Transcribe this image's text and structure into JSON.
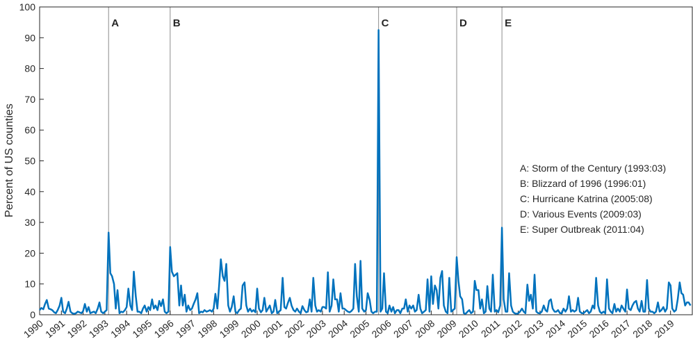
{
  "chart_data": {
    "type": "line",
    "ylabel": "Percent of US counties",
    "color": "#0072bd",
    "xlim": [
      1990,
      2020
    ],
    "ylim": [
      0,
      100
    ],
    "yticks": [
      0,
      10,
      20,
      30,
      40,
      50,
      60,
      70,
      80,
      90,
      100
    ],
    "xticks": [
      1990,
      1991,
      1992,
      1993,
      1994,
      1995,
      1996,
      1997,
      1998,
      1999,
      2000,
      2001,
      2002,
      2003,
      2004,
      2005,
      2006,
      2007,
      2008,
      2009,
      2010,
      2011,
      2012,
      2013,
      2014,
      2015,
      2016,
      2017,
      2018,
      2019
    ],
    "events": [
      {
        "label": "A",
        "x": 1993.17,
        "text": "A: Storm of the Century (1993:03)"
      },
      {
        "label": "B",
        "x": 1996.0,
        "text": "B: Blizzard of 1996 (1996:01)"
      },
      {
        "label": "C",
        "x": 2005.58,
        "text": "C: Hurricane Katrina (2005:08)"
      },
      {
        "label": "D",
        "x": 2009.17,
        "text": "D: Various Events (2009:03)"
      },
      {
        "label": "E",
        "x": 2011.25,
        "text": "E: Super Outbreak (2011:04)"
      }
    ],
    "x": [
      1990.0,
      1990.08,
      1990.17,
      1990.25,
      1990.33,
      1990.42,
      1990.5,
      1990.58,
      1990.67,
      1990.75,
      1990.83,
      1990.92,
      1991.0,
      1991.08,
      1991.17,
      1991.25,
      1991.33,
      1991.42,
      1991.5,
      1991.58,
      1991.67,
      1991.75,
      1991.83,
      1991.92,
      1992.0,
      1992.08,
      1992.17,
      1992.25,
      1992.33,
      1992.42,
      1992.5,
      1992.58,
      1992.67,
      1992.75,
      1992.83,
      1992.92,
      1993.0,
      1993.08,
      1993.17,
      1993.25,
      1993.33,
      1993.42,
      1993.5,
      1993.58,
      1993.67,
      1993.75,
      1993.83,
      1993.92,
      1994.0,
      1994.08,
      1994.17,
      1994.25,
      1994.33,
      1994.42,
      1994.5,
      1994.58,
      1994.67,
      1994.75,
      1994.83,
      1994.92,
      1995.0,
      1995.08,
      1995.17,
      1995.25,
      1995.33,
      1995.42,
      1995.5,
      1995.58,
      1995.67,
      1995.75,
      1995.83,
      1995.92,
      1996.0,
      1996.08,
      1996.17,
      1996.25,
      1996.33,
      1996.42,
      1996.5,
      1996.58,
      1996.67,
      1996.75,
      1996.83,
      1996.92,
      1997.0,
      1997.08,
      1997.17,
      1997.25,
      1997.33,
      1997.42,
      1997.5,
      1997.58,
      1997.67,
      1997.75,
      1997.83,
      1997.92,
      1998.0,
      1998.08,
      1998.17,
      1998.25,
      1998.33,
      1998.42,
      1998.5,
      1998.58,
      1998.67,
      1998.75,
      1998.83,
      1998.92,
      1999.0,
      1999.08,
      1999.17,
      1999.25,
      1999.33,
      1999.42,
      1999.5,
      1999.58,
      1999.67,
      1999.75,
      1999.83,
      1999.92,
      2000.0,
      2000.08,
      2000.17,
      2000.25,
      2000.33,
      2000.42,
      2000.5,
      2000.58,
      2000.67,
      2000.75,
      2000.83,
      2000.92,
      2001.0,
      2001.08,
      2001.17,
      2001.25,
      2001.33,
      2001.42,
      2001.5,
      2001.58,
      2001.67,
      2001.75,
      2001.83,
      2001.92,
      2002.0,
      2002.08,
      2002.17,
      2002.25,
      2002.33,
      2002.42,
      2002.5,
      2002.58,
      2002.67,
      2002.75,
      2002.83,
      2002.92,
      2003.0,
      2003.08,
      2003.17,
      2003.25,
      2003.33,
      2003.42,
      2003.5,
      2003.58,
      2003.67,
      2003.75,
      2003.83,
      2003.92,
      2004.0,
      2004.08,
      2004.17,
      2004.25,
      2004.33,
      2004.42,
      2004.5,
      2004.58,
      2004.67,
      2004.75,
      2004.83,
      2004.92,
      2005.0,
      2005.08,
      2005.17,
      2005.25,
      2005.33,
      2005.42,
      2005.5,
      2005.58,
      2005.67,
      2005.75,
      2005.83,
      2005.92,
      2006.0,
      2006.08,
      2006.17,
      2006.25,
      2006.33,
      2006.42,
      2006.5,
      2006.58,
      2006.67,
      2006.75,
      2006.83,
      2006.92,
      2007.0,
      2007.08,
      2007.17,
      2007.25,
      2007.33,
      2007.42,
      2007.5,
      2007.58,
      2007.67,
      2007.75,
      2007.83,
      2007.92,
      2008.0,
      2008.08,
      2008.17,
      2008.25,
      2008.33,
      2008.42,
      2008.5,
      2008.58,
      2008.67,
      2008.75,
      2008.83,
      2008.92,
      2009.0,
      2009.08,
      2009.17,
      2009.25,
      2009.33,
      2009.42,
      2009.5,
      2009.58,
      2009.67,
      2009.75,
      2009.83,
      2009.92,
      2010.0,
      2010.08,
      2010.17,
      2010.25,
      2010.33,
      2010.42,
      2010.5,
      2010.58,
      2010.67,
      2010.75,
      2010.83,
      2010.92,
      2011.0,
      2011.08,
      2011.17,
      2011.25,
      2011.33,
      2011.42,
      2011.5,
      2011.58,
      2011.67,
      2011.75,
      2011.83,
      2011.92,
      2012.0,
      2012.08,
      2012.17,
      2012.25,
      2012.33,
      2012.42,
      2012.5,
      2012.58,
      2012.67,
      2012.75,
      2012.83,
      2012.92,
      2013.0,
      2013.08,
      2013.17,
      2013.25,
      2013.33,
      2013.42,
      2013.5,
      2013.58,
      2013.67,
      2013.75,
      2013.83,
      2013.92,
      2014.0,
      2014.08,
      2014.17,
      2014.25,
      2014.33,
      2014.42,
      2014.5,
      2014.58,
      2014.67,
      2014.75,
      2014.83,
      2014.92,
      2015.0,
      2015.08,
      2015.17,
      2015.25,
      2015.33,
      2015.42,
      2015.5,
      2015.58,
      2015.67,
      2015.75,
      2015.83,
      2015.92,
      2016.0,
      2016.08,
      2016.17,
      2016.25,
      2016.33,
      2016.42,
      2016.5,
      2016.58,
      2016.67,
      2016.75,
      2016.83,
      2016.92,
      2017.0,
      2017.08,
      2017.17,
      2017.25,
      2017.33,
      2017.42,
      2017.5,
      2017.58,
      2017.67,
      2017.75,
      2017.83,
      2017.92,
      2018.0,
      2018.08,
      2018.17,
      2018.25,
      2018.33,
      2018.42,
      2018.5,
      2018.58,
      2018.67,
      2018.75,
      2018.83,
      2018.92,
      2019.0,
      2019.08,
      2019.17,
      2019.25,
      2019.33,
      2019.42,
      2019.5,
      2019.58,
      2019.67,
      2019.75,
      2019.83,
      2019.92
    ],
    "values": [
      1.5,
      2.2,
      1.8,
      3.5,
      4.8,
      2,
      1.8,
      1.5,
      0.8,
      0.5,
      1.5,
      3,
      5.5,
      1,
      0.5,
      2,
      4.2,
      1,
      0.5,
      0.3,
      0.5,
      1,
      0.8,
      0.5,
      1.2,
      3.5,
      1,
      2.5,
      0.5,
      0.8,
      1,
      0.5,
      2,
      4,
      1,
      0.5,
      1,
      1.5,
      26.7,
      13.5,
      12.5,
      10,
      2,
      8,
      0.5,
      1,
      0.8,
      1.5,
      2.5,
      8.5,
      3,
      1.5,
      14,
      6,
      1,
      1,
      0.5,
      2,
      3,
      1,
      2.5,
      1.5,
      5,
      2,
      3,
      1.5,
      4.5,
      2.8,
      5,
      1,
      0.5,
      1,
      22,
      14,
      12.5,
      13,
      13.5,
      3,
      9.5,
      3,
      6.5,
      1,
      3,
      1.5,
      2,
      3.5,
      5,
      7,
      0.5,
      1,
      0.8,
      1.5,
      1,
      1.2,
      1.5,
      1,
      2,
      6.8,
      2,
      9.5,
      18,
      12.5,
      11,
      16.5,
      3,
      1,
      2.5,
      6,
      1,
      0.5,
      1.5,
      2,
      9.5,
      10.5,
      3,
      1,
      2,
      1,
      1.5,
      0.8,
      8.5,
      2,
      0.8,
      1.5,
      5.5,
      1,
      2,
      3,
      0.5,
      1,
      4.8,
      0.5,
      1,
      1.5,
      12,
      2.5,
      2,
      4,
      5.5,
      3,
      1.5,
      1,
      2,
      1,
      0.5,
      2.8,
      1.5,
      0.8,
      1,
      5,
      1,
      12,
      3,
      1,
      1.5,
      1,
      2.5,
      2.5,
      2,
      13.8,
      1,
      3,
      11.5,
      5,
      5,
      1,
      7,
      2,
      2,
      1.5,
      1,
      0.8,
      1.2,
      2,
      16.5,
      6,
      1,
      17.5,
      2,
      1,
      1.5,
      7,
      4.8,
      1,
      0.5,
      1,
      1,
      92.5,
      1,
      2,
      13.5,
      1,
      0.5,
      3,
      1,
      2.5,
      0.5,
      1.5,
      1.5,
      0.5,
      2,
      2,
      5,
      1,
      3,
      2,
      3,
      1,
      1.5,
      6.5,
      2,
      0.5,
      1,
      1.5,
      11.5,
      1,
      12.5,
      3.5,
      9.5,
      8,
      2,
      12,
      14.2,
      3,
      1,
      0.5,
      12,
      1,
      1.5,
      2,
      18.7,
      11,
      6,
      5,
      0.5,
      0.3,
      1,
      1.5,
      0.5,
      1,
      11,
      8,
      8,
      2,
      5,
      0.5,
      1,
      9.3,
      2,
      1,
      13,
      1,
      1.5,
      0.8,
      3,
      28.3,
      5,
      1,
      1,
      13.5,
      3,
      1,
      0.5,
      0.3,
      0.5,
      1,
      2,
      1,
      0.5,
      9.8,
      4.5,
      6.5,
      2,
      13,
      1,
      0.5,
      0.5,
      1,
      3,
      1.5,
      1,
      4.5,
      5,
      2,
      1,
      1,
      1.5,
      0.5,
      0.5,
      2,
      1,
      2,
      6,
      1,
      1.5,
      1,
      1.5,
      5.5,
      1,
      0.5,
      0.5,
      1,
      1.5,
      0.5,
      1,
      3,
      2,
      12,
      3,
      1,
      0.5,
      1,
      0.5,
      11.5,
      2,
      1,
      0.5,
      3.5,
      1,
      2,
      1,
      3,
      2,
      1,
      8.2,
      2,
      1.5,
      3,
      4,
      4.5,
      2,
      1,
      4.5,
      1,
      1,
      11.3,
      2,
      1,
      1,
      0.5,
      1,
      4,
      1,
      1.5,
      2.5,
      1,
      2,
      10.5,
      9.5,
      2,
      1,
      1.5,
      5,
      10.5,
      7,
      6.5,
      3,
      4,
      4,
      3
    ]
  }
}
